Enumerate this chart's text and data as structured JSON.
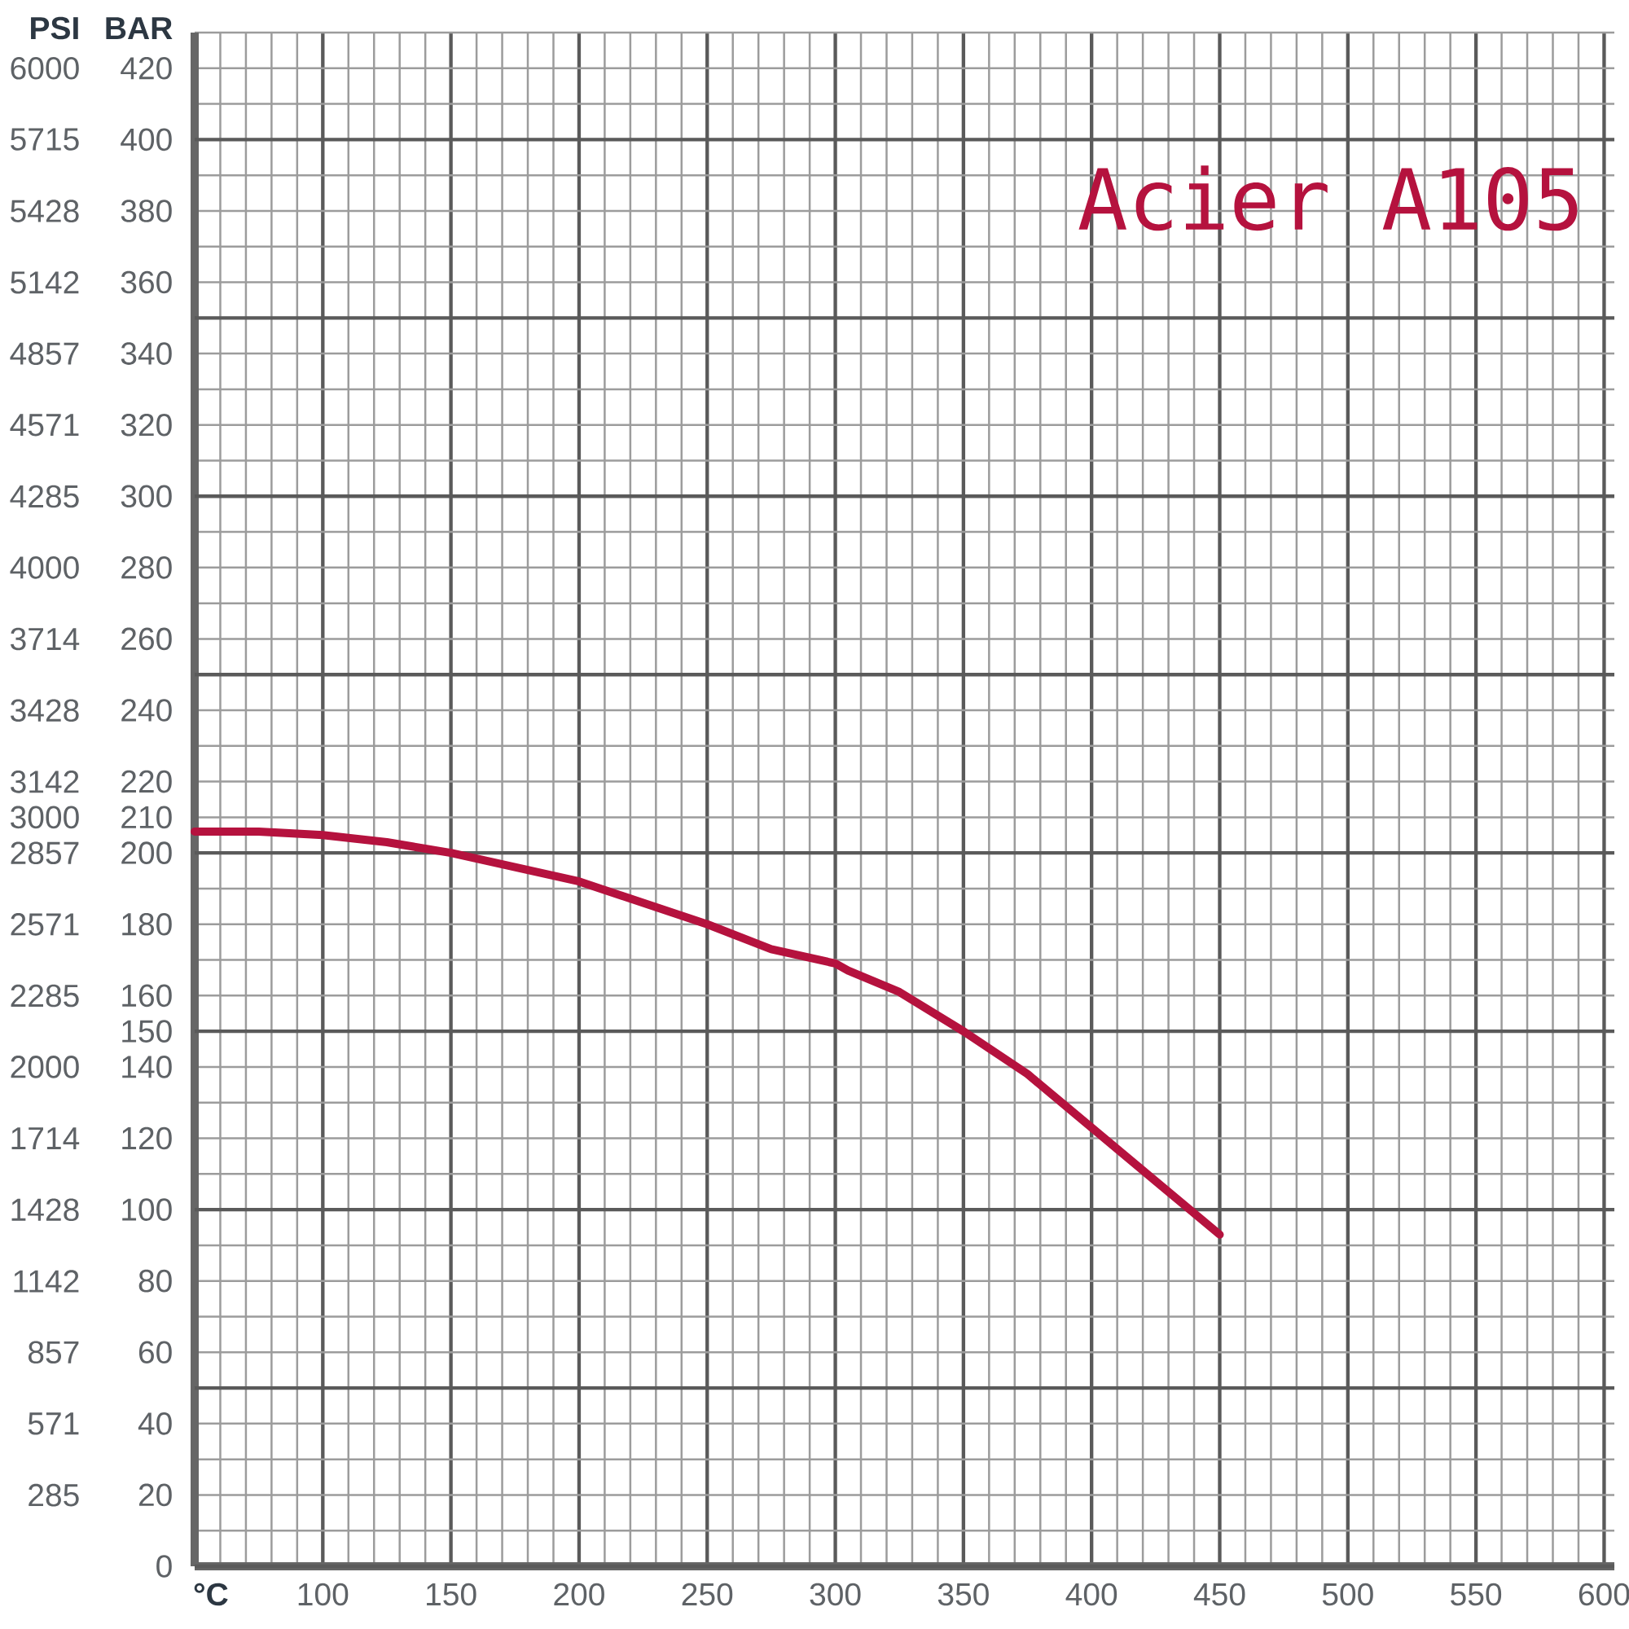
{
  "chart_data": {
    "type": "line",
    "title": "Acier A105",
    "xlabel": "°C",
    "ylabel": "BAR",
    "y2label": "PSI",
    "x": [
      50,
      75,
      100,
      125,
      150,
      175,
      200,
      225,
      250,
      275,
      300,
      305,
      325,
      350,
      375,
      400,
      425,
      450
    ],
    "series": [
      {
        "color": "#b5123e",
        "values": [
          206,
          206,
          205,
          203,
          200,
          196,
          192,
          186,
          180,
          173,
          169,
          167,
          161,
          150,
          138,
          123,
          108,
          93
        ]
      }
    ],
    "xlim": [
      50,
      604
    ],
    "xticks": [
      100,
      150,
      200,
      250,
      300,
      350,
      400,
      450,
      500,
      550,
      600
    ],
    "ylim": [
      0,
      430
    ],
    "yticks": [
      0,
      20,
      40,
      60,
      80,
      100,
      120,
      140,
      150,
      160,
      180,
      200,
      210,
      220,
      240,
      260,
      280,
      300,
      320,
      340,
      360,
      380,
      400,
      420
    ],
    "y2lim": [
      0,
      6143
    ],
    "y2ticks": [
      285,
      571,
      857,
      1142,
      1428,
      1714,
      2000,
      2285,
      2571,
      2857,
      3000,
      3142,
      3428,
      3714,
      4000,
      4285,
      4571,
      4857,
      5142,
      5428,
      5715,
      6000
    ],
    "grid": true
  }
}
